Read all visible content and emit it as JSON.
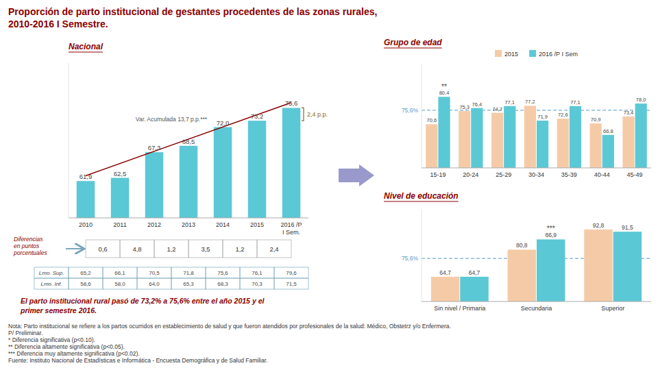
{
  "title": "Proporción de parto institucional de gestantes procedentes de las zonas rurales,\n2010-2016 I Semestre.",
  "caption": "El parto institucional rural pasó de 73,2% a 75,6% entre el año 2015 y el\nprimer semestre 2016.",
  "footnote": "Nota: Parto institucional se refiere a los partos ocurridos en establecimiento de salud y que fueron atendidos por profesionales de la salud: Médico, Obstetrz y/o Enfermera.\nP/ Preliminar.\n*   Diferencia significativa (p<0.10).\n**  Diferencia altamente significativa (p<0.05).\n*** Diferencia muy altamente significativa (p<0.02).\nFuente: Instituto Nacional de Estadísticas e Informática - Encuesta Demográfica y de Salud Familiar.",
  "chart_data": [
    {
      "type": "bar",
      "title": "Nacional",
      "categories": [
        "2010",
        "2011",
        "2012",
        "2013",
        "2014",
        "2015",
        "2016 /P\nI Sem."
      ],
      "values": [
        61.9,
        62.5,
        67.3,
        68.5,
        72.0,
        73.2,
        75.6
      ],
      "value_labels": [
        "61,9",
        "62,5",
        "67,3",
        "68,5",
        "72,0",
        "73,2",
        "75,6"
      ],
      "color": "#5BC8D5",
      "ylim": [
        55,
        84
      ],
      "tick_labels": "x",
      "data_labels": true,
      "trend_line": {
        "label": "Var. Acumulada 13,7 p.p.***",
        "color": "#8B0000",
        "values": [
          62.9,
          76.6
        ]
      },
      "annotations": [
        {
          "text": "2,4 p.p.",
          "values": [
            73.2,
            75.6
          ]
        }
      ],
      "differences": {
        "label": "Diferencias\nen puntos\nporcentuales",
        "values": [
          0.6,
          4.8,
          1.2,
          3.5,
          1.2,
          2.4
        ],
        "value_labels": [
          "0,6",
          "4,8",
          "1,2",
          "3,5",
          "1,2",
          "2,4"
        ]
      },
      "confidence_limits": [
        {
          "label": "Lmo. Inf.",
          "values": [
            58.6,
            58.0,
            64.0,
            65.3,
            68.3,
            70.3,
            71.5
          ],
          "value_labels": [
            "58,6",
            "58,0",
            "64,0",
            "65,3",
            "68,3",
            "70,3",
            "71,5"
          ]
        },
        {
          "label": "Lmo. Sup.",
          "values": [
            65.2,
            66.1,
            70.5,
            71.8,
            75.6,
            76.1,
            79.6
          ],
          "value_labels": [
            "65,2",
            "66,1",
            "70,5",
            "71,8",
            "75,6",
            "76,1",
            "79,6"
          ]
        }
      ]
    },
    {
      "type": "bar",
      "title": "Grupo de edad",
      "categories": [
        "15-19",
        "20-24",
        "25-29",
        "30-34",
        "35-39",
        "40-44",
        "45-49"
      ],
      "series": [
        {
          "name": "2015",
          "color": "#F5CBA7",
          "values": [
            70.6,
            75.3,
            74.7,
            77.2,
            72.6,
            70.9,
            73.4
          ],
          "value_labels": [
            "70,6",
            "75,3",
            "74,7",
            "77,2",
            "72,6",
            "70,9",
            "73,4"
          ]
        },
        {
          "name": "2016 /P I Sem",
          "color": "#5BC8D5",
          "values": [
            80.4,
            76.4,
            77.1,
            71.9,
            77.1,
            66.8,
            78.0
          ],
          "value_labels": [
            "80,4",
            "76,4",
            "77,1",
            "71,9",
            "77,1",
            "66,8",
            "78,0"
          ]
        }
      ],
      "ylim": [
        55,
        92
      ],
      "tick_labels": "x",
      "data_labels": true,
      "legend": "upper center",
      "reference_lines": [
        {
          "value": 75.6,
          "label": "75,6%"
        }
      ],
      "annotations": [
        {
          "text": "**",
          "category": "15-19",
          "series": 1
        }
      ]
    },
    {
      "type": "bar",
      "title": "Nivel de educación",
      "categories": [
        "Sin nivel / Primaria",
        "Secundaria",
        "Superior"
      ],
      "series": [
        {
          "color": "#F5CBA7",
          "values": [
            64.7,
            80.8,
            92.8
          ],
          "value_labels": [
            "64,7",
            "80,8",
            "92,8"
          ]
        },
        {
          "color": "#5BC8D5",
          "values": [
            64.7,
            86.9,
            91.5
          ],
          "value_labels": [
            "64,7",
            "86,9",
            "91,5"
          ]
        }
      ],
      "ylim": [
        50,
        105
      ],
      "tick_labels": "x",
      "data_labels": true,
      "reference_lines": [
        {
          "value": 75.6,
          "label": "75,6%"
        }
      ],
      "annotations": [
        {
          "text": "***",
          "category": "Secundaria",
          "series": 1
        }
      ]
    }
  ]
}
